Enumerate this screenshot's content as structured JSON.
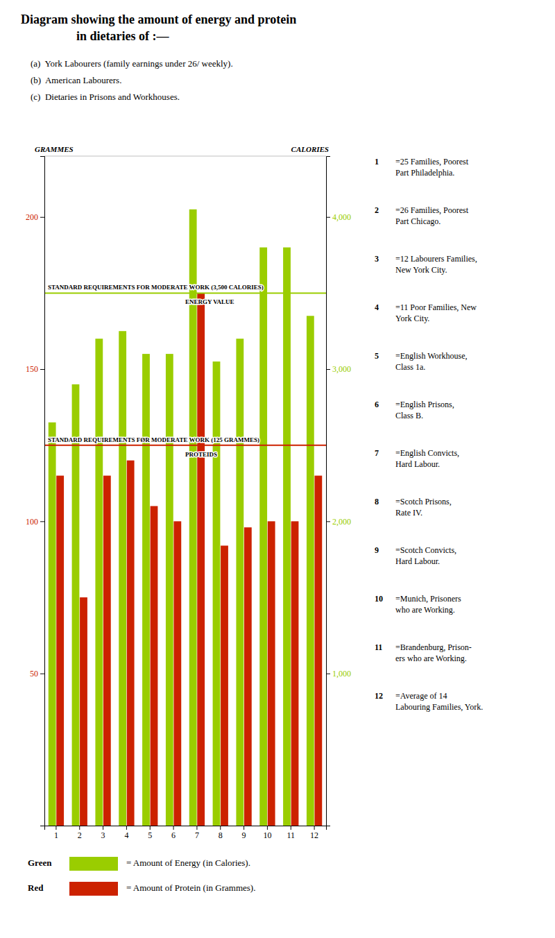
{
  "chart_data": {
    "type": "bar",
    "title": [
      "Diagram showing the amount of energy and protein",
      "in dietaries of :—"
    ],
    "subtitle": [
      "(a)  York Labourers (family earnings under 26/ weekly).",
      "(b)  American Labourers.",
      "(c)  Dietaries in Prisons and Workhouses."
    ],
    "ylabel": "GRAMMES",
    "y2label": "CALORIES",
    "categories": [
      "1",
      "2",
      "3",
      "4",
      "5",
      "6",
      "7",
      "8",
      "9",
      "10",
      "11",
      "12"
    ],
    "series": [
      {
        "name": "= Amount of Energy (in Calories).",
        "legend_key": "Green",
        "color": "#9acd00",
        "axis": "y2",
        "values": [
          2650,
          2900,
          3200,
          3250,
          3100,
          3100,
          4050,
          3050,
          3200,
          3800,
          3800,
          3350
        ]
      },
      {
        "name": "= Amount of Protein (in Grammes).",
        "legend_key": "Red",
        "color": "#cc2200",
        "values": [
          115,
          75,
          115,
          120,
          105,
          100,
          175,
          92,
          98,
          100,
          100,
          115
        ]
      }
    ],
    "ylim": [
      0,
      220
    ],
    "yticks": [
      50,
      100,
      150,
      200
    ],
    "y2lim": [
      0,
      4400
    ],
    "y2ticks": [
      {
        "value": 1000,
        "label": "1,000"
      },
      {
        "value": 2000,
        "label": "2,000"
      },
      {
        "value": 3000,
        "label": "3,000"
      },
      {
        "value": 4000,
        "label": "4,000"
      }
    ],
    "reference_lines": [
      {
        "value": 3500,
        "axis": "y2",
        "color": "#9acd00",
        "labels": [
          "STANDARD REQUIREMENTS FOR MODERATE WORK (3,500 CALORIES)",
          "ENERGY VALUE"
        ]
      },
      {
        "value": 125,
        "color": "#cc2200",
        "labels": [
          "STANDARD REQUIREMENTS FØR MODERATE WORK (125 GRAMMES)",
          "PROTEIDS"
        ]
      }
    ],
    "notes": [
      {
        "number": "1",
        "text": "=25 Families, Poorest\nPart Philadelphia."
      },
      {
        "number": "2",
        "text": "=26 Families, Poorest\nPart Chicago."
      },
      {
        "number": "3",
        "text": "=12 Labourers Families,\nNew York City."
      },
      {
        "number": "4",
        "text": "=11 Poor Families, New\nYork City."
      },
      {
        "number": "5",
        "text": "=English Workhouse,\nClass 1a."
      },
      {
        "number": "6",
        "text": "=English Prisons,\nClass B."
      },
      {
        "number": "7",
        "text": "=English Convicts,\nHard Labour."
      },
      {
        "number": "8",
        "text": "=Scotch Prisons,\nRate IV."
      },
      {
        "number": "9",
        "text": "=Scotch Convicts,\nHard Labour."
      },
      {
        "number": "10",
        "text": "=Munich, Prisoners\nwho are Working."
      },
      {
        "number": "11",
        "text": "=Brandenburg, Prison-\ners who are Working."
      },
      {
        "number": "12",
        "text": "=Average of 14\nLabouring Families, York."
      }
    ],
    "grid": false
  }
}
